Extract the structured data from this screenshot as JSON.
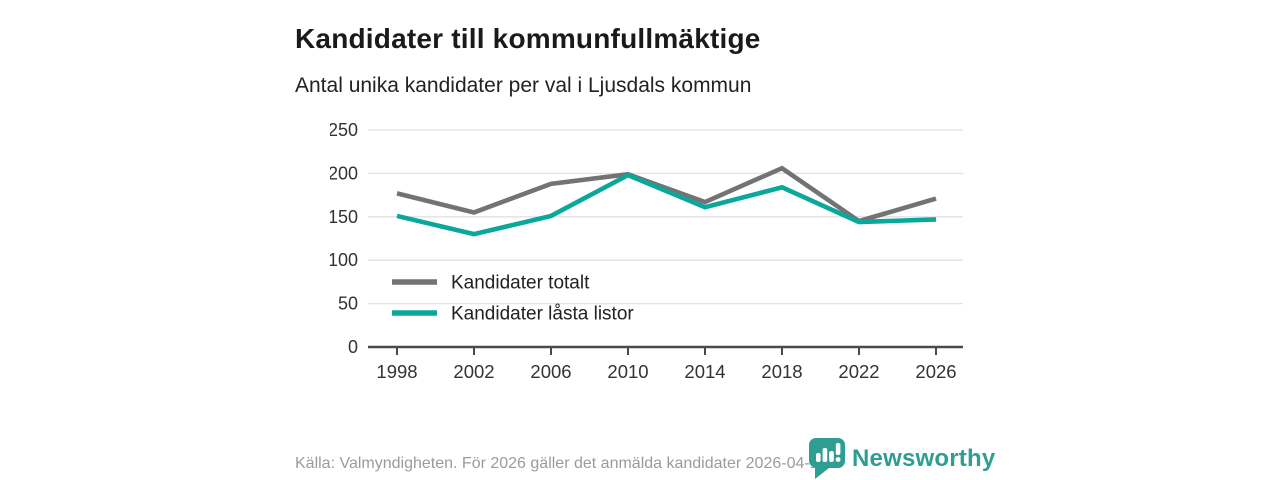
{
  "header": {
    "title": "Kandidater till kommunfullmäktige",
    "subtitle": "Antal unika kandidater per val i Ljusdals kommun"
  },
  "chart_data": {
    "type": "line",
    "x": [
      1998,
      2002,
      2006,
      2010,
      2014,
      2018,
      2022,
      2026
    ],
    "series": [
      {
        "name": "Kandidater totalt",
        "color": "#737373",
        "values": [
          177,
          155,
          188,
          199,
          167,
          206,
          145,
          171
        ]
      },
      {
        "name": "Kandidater låsta listor",
        "color": "#0aa79b",
        "values": [
          151,
          130,
          151,
          198,
          161,
          184,
          144,
          147
        ]
      }
    ],
    "title": "Kandidater till kommunfullmäktige",
    "subtitle": "Antal unika kandidater per val i Ljusdals kommun",
    "xlabel": "",
    "ylabel": "",
    "ylim": [
      0,
      250
    ],
    "yticks": [
      0,
      50,
      100,
      150,
      200,
      250
    ],
    "grid": true,
    "legend_position": "inside-bottom-left"
  },
  "footer": {
    "source": "Källa: Valmyndigheten. För 2026 gäller det anmälda kandidater 2026-04-10.",
    "brand": "Newsworthy"
  },
  "colors": {
    "series_total": "#737373",
    "series_locked": "#0aa79b",
    "brand_teal": "#2f9e92",
    "grid_line": "#e2e2e2",
    "axis_line": "#4a4a4a",
    "tick_text": "#333333",
    "muted_text": "#9b9b9b"
  }
}
